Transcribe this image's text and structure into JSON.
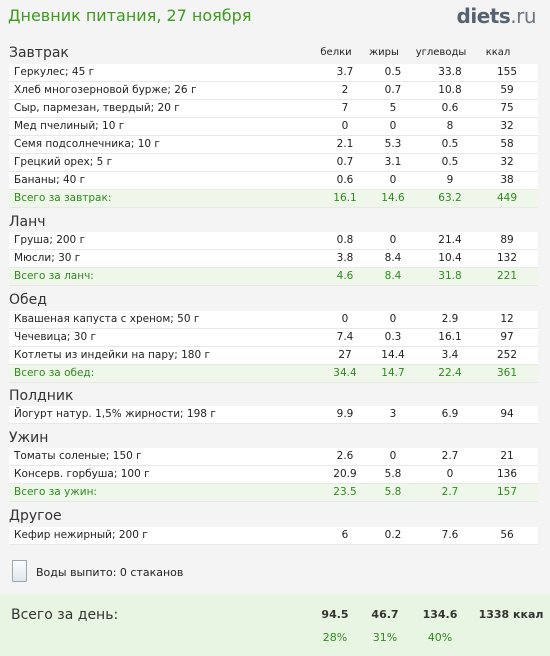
{
  "header": {
    "title": "Дневник питания, 27 ноября",
    "brand_main": "diets",
    "brand_tld": ".ru"
  },
  "columns": {
    "protein": "белки",
    "fat": "жиры",
    "carbs": "углеводы",
    "kcal": "ккал"
  },
  "meals": [
    {
      "title": "Завтрак",
      "items": [
        {
          "name": "Геркулес; 45 г",
          "p": "3.7",
          "f": "0.5",
          "c": "33.8",
          "k": "155"
        },
        {
          "name": "Хлеб многозерновой бурже; 26 г",
          "p": "2",
          "f": "0.7",
          "c": "10.8",
          "k": "59"
        },
        {
          "name": "Сыр, пармезан, твердый; 20 г",
          "p": "7",
          "f": "5",
          "c": "0.6",
          "k": "75"
        },
        {
          "name": "Мед пчелиный; 10 г",
          "p": "0",
          "f": "0",
          "c": "8",
          "k": "32"
        },
        {
          "name": "Семя подсолнечника; 10 г",
          "p": "2.1",
          "f": "5.3",
          "c": "0.5",
          "k": "58"
        },
        {
          "name": "Грецкий орех; 5 г",
          "p": "0.7",
          "f": "3.1",
          "c": "0.5",
          "k": "32"
        },
        {
          "name": "Бананы; 40 г",
          "p": "0.6",
          "f": "0",
          "c": "9",
          "k": "38"
        }
      ],
      "total": {
        "name": "Всего за завтрак:",
        "p": "16.1",
        "f": "14.6",
        "c": "63.2",
        "k": "449"
      }
    },
    {
      "title": "Ланч",
      "items": [
        {
          "name": "Груша; 200 г",
          "p": "0.8",
          "f": "0",
          "c": "21.4",
          "k": "89"
        },
        {
          "name": "Мюсли; 30 г",
          "p": "3.8",
          "f": "8.4",
          "c": "10.4",
          "k": "132"
        }
      ],
      "total": {
        "name": "Всего за ланч:",
        "p": "4.6",
        "f": "8.4",
        "c": "31.8",
        "k": "221"
      }
    },
    {
      "title": "Обед",
      "items": [
        {
          "name": "Квашеная капуста с хреном; 50 г",
          "p": "0",
          "f": "0",
          "c": "2.9",
          "k": "12"
        },
        {
          "name": "Чечевица; 30 г",
          "p": "7.4",
          "f": "0.3",
          "c": "16.1",
          "k": "97"
        },
        {
          "name": "Котлеты из индейки на пару; 180 г",
          "p": "27",
          "f": "14.4",
          "c": "3.4",
          "k": "252"
        }
      ],
      "total": {
        "name": "Всего за обед:",
        "p": "34.4",
        "f": "14.7",
        "c": "22.4",
        "k": "361"
      }
    },
    {
      "title": "Полдник",
      "items": [
        {
          "name": "Йогурт натур. 1,5% жирности; 198 г",
          "p": "9.9",
          "f": "3",
          "c": "6.9",
          "k": "94"
        }
      ]
    },
    {
      "title": "Ужин",
      "items": [
        {
          "name": "Томаты соленые; 150 г",
          "p": "2.6",
          "f": "0",
          "c": "2.7",
          "k": "21"
        },
        {
          "name": "Консерв. горбуша; 100 г",
          "p": "20.9",
          "f": "5.8",
          "c": "0",
          "k": "136"
        }
      ],
      "total": {
        "name": "Всего за ужин:",
        "p": "23.5",
        "f": "5.8",
        "c": "2.7",
        "k": "157"
      }
    },
    {
      "title": "Другое",
      "items": [
        {
          "name": "Кефир нежирный; 200 г",
          "p": "6",
          "f": "0.2",
          "c": "7.6",
          "k": "56"
        }
      ]
    }
  ],
  "water": {
    "text": "Воды выпито: 0 стаканов"
  },
  "day": {
    "label": "Всего за день:",
    "p": "94.5",
    "f": "46.7",
    "c": "134.6",
    "k": "1338 ккал",
    "pp": "28%",
    "fp": "31%",
    "cp": "40%"
  }
}
